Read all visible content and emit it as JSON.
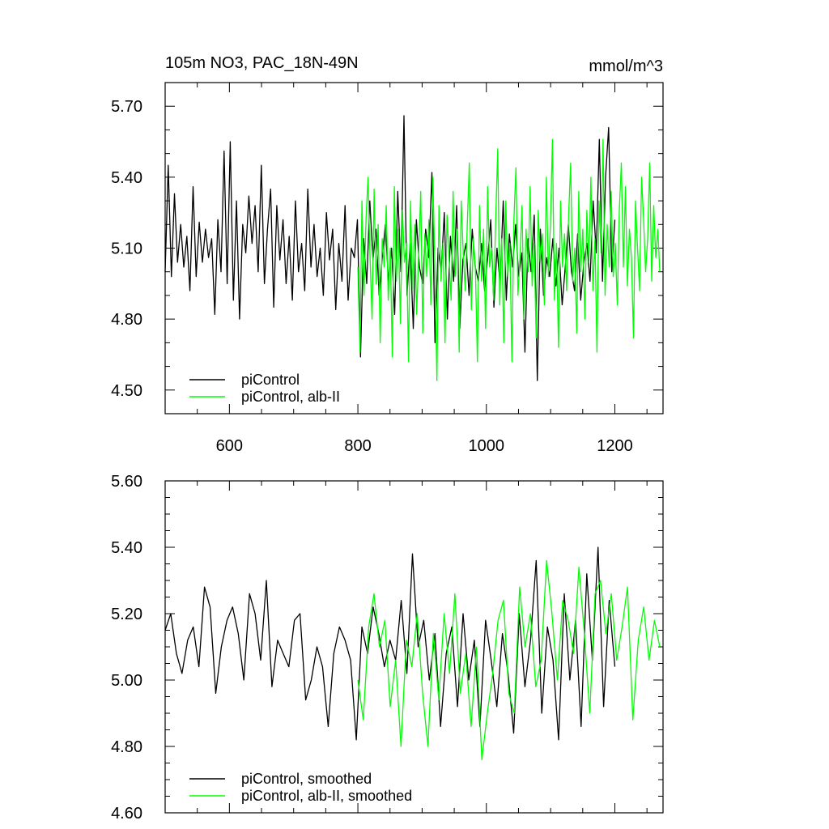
{
  "chart_data": [
    {
      "type": "line",
      "title": "105m NO3, PAC_18N-49N",
      "units": "mmol/m^3",
      "xlim": [
        500,
        1275
      ],
      "ylim": [
        4.4,
        5.8
      ],
      "xticks": [
        600,
        800,
        1000,
        1200
      ],
      "xtick_labels": [
        "600",
        "800",
        "1000",
        "1200"
      ],
      "yticks": [
        4.5,
        4.8,
        5.1,
        5.4,
        5.7
      ],
      "ytick_labels": [
        "4.50",
        "4.80",
        "5.10",
        "5.40",
        "5.70"
      ],
      "legend": [
        "piControl",
        "piControl, alb-II"
      ],
      "legend_position": "bottom-left",
      "grid": false,
      "series": [
        {
          "name": "piControl",
          "color": "#000000",
          "x_start": 500,
          "x_step": 1,
          "values": [
            5.0,
            5.45,
            4.98,
            5.33,
            5.04,
            5.2,
            5.02,
            5.15,
            4.92,
            5.36,
            4.98,
            5.21,
            5.04,
            5.18,
            5.06,
            5.14,
            4.82,
            5.22,
            5.0,
            5.51,
            4.95,
            5.55,
            4.88,
            5.3,
            4.8,
            5.2,
            5.08,
            5.32,
            5.12,
            5.28,
            5.0,
            5.45,
            4.95,
            5.18,
            5.35,
            4.85,
            5.28,
            5.05,
            5.22,
            4.95,
            5.15,
            4.88,
            5.3,
            5.0,
            5.12,
            4.92,
            5.35,
            5.02,
            5.2,
            4.98,
            5.1,
            4.9,
            5.25,
            5.05,
            5.18,
            4.84,
            5.12,
            4.96,
            5.28,
            4.88,
            5.1,
            5.06,
            5.22,
            4.64,
            5.14,
            4.95,
            5.3,
            5.05,
            5.18,
            4.9,
            5.06,
            5.2,
            4.96,
            5.1,
            4.82,
            5.34,
            5.0,
            5.66,
            4.9,
            5.12,
            4.76,
            5.22,
            5.02,
            4.95,
            5.18,
            5.06,
            5.42,
            4.7,
            5.1,
            5.0,
            5.25,
            4.8,
            5.15,
            4.96,
            5.28,
            4.76,
            5.05,
            5.12,
            4.9,
            5.18,
            5.02,
            4.96,
            5.12,
            4.92,
            5.06,
            5.22,
            4.85,
            5.1,
            4.95,
            5.3,
            4.88,
            5.16,
            5.02,
            5.2,
            4.98,
            5.08,
            4.66,
            5.14,
            5.0,
            5.24,
            4.54,
            5.18,
            4.9,
            5.06,
            4.98,
            5.14,
            4.94,
            5.1,
            4.86,
            5.02,
            5.2,
            5.0,
            4.92,
            5.16,
            4.88,
            5.04,
            5.12,
            4.96,
            5.3,
            5.08,
            5.56,
            4.96,
            5.4,
            5.61,
            5.0,
            5.22
          ]
        },
        {
          "name": "piControl, alb-II",
          "color": "#00ff00",
          "x_start": 800,
          "x_step": 1,
          "values": [
            5.02,
            4.66,
            5.3,
            4.9,
            5.22,
            5.4,
            5.06,
            4.8,
            5.35,
            4.95,
            5.2,
            4.7,
            5.14,
            5.02,
            5.28,
            4.88,
            5.1,
            4.64,
            5.36,
            4.96,
            5.18,
            4.78,
            5.26,
            5.04,
            5.12,
            4.62,
            5.3,
            4.92,
            5.2,
            4.82,
            5.08,
            5.34,
            4.74,
            5.16,
            4.98,
            5.22,
            4.86,
            5.4,
            5.02,
            4.54,
            5.28,
            4.96,
            5.12,
            4.7,
            5.24,
            5.06,
            4.88,
            5.34,
            4.98,
            5.18,
            4.66,
            5.3,
            5.08,
            4.92,
            5.2,
            5.46,
            4.84,
            5.14,
            5.02,
            4.62,
            5.28,
            4.96,
            5.18,
            4.76,
            5.36,
            5.02,
            5.1,
            4.88,
            5.22,
            5.52,
            4.86,
            5.14,
            4.7,
            5.3,
            4.98,
            5.12,
            4.62,
            5.22,
            5.44,
            4.9,
            5.06,
            5.28,
            4.8,
            5.18,
            5.0,
            5.36,
            4.94,
            5.12,
            4.72,
            5.26,
            5.04,
            5.16,
            4.86,
            5.4,
            4.98,
            5.2,
            5.56,
            4.88,
            5.12,
            4.68,
            5.3,
            5.02,
            5.16,
            4.92,
            5.24,
            5.46,
            4.96,
            5.1,
            4.74,
            5.34,
            5.0,
            5.18,
            4.8,
            5.26,
            5.04,
            5.4,
            4.92,
            5.14,
            4.66,
            5.3,
            5.08,
            5.56,
            4.9,
            5.2,
            5.02,
            5.34,
            4.98,
            5.12,
            4.86,
            5.26,
            5.46,
            5.02,
            5.36,
            4.94,
            5.18,
            5.06,
            4.72,
            5.3,
            5.1,
            4.92,
            5.4,
            5.22,
            5.0,
            5.14,
            5.46,
            4.96,
            5.28,
            5.06,
            5.18,
            5.0
          ]
        }
      ]
    },
    {
      "type": "line",
      "xlim": [
        500,
        1275
      ],
      "ylim": [
        4.6,
        5.6
      ],
      "xticks": [
        600,
        800,
        1000,
        1200
      ],
      "yticks": [
        4.6,
        4.8,
        5.0,
        5.2,
        5.4,
        5.6
      ],
      "ytick_labels": [
        "4.60",
        "4.80",
        "5.00",
        "5.20",
        "5.40",
        "5.60"
      ],
      "legend": [
        "piControl, smoothed",
        "piControl, alb-II, smoothed"
      ],
      "legend_position": "bottom-left",
      "grid": false,
      "series": [
        {
          "name": "piControl, smoothed",
          "color": "#000000",
          "x_start": 500,
          "x_step": 5,
          "values": [
            5.15,
            5.2,
            5.08,
            5.02,
            5.12,
            5.16,
            5.04,
            5.28,
            5.22,
            4.96,
            5.1,
            5.18,
            5.22,
            5.14,
            5.0,
            5.26,
            5.2,
            5.06,
            5.3,
            4.98,
            5.12,
            5.08,
            5.04,
            5.18,
            5.2,
            4.94,
            5.0,
            5.1,
            5.04,
            4.86,
            5.08,
            5.16,
            5.12,
            5.06,
            4.82,
            5.16,
            5.08,
            5.22,
            5.14,
            5.04,
            5.12,
            5.06,
            5.24,
            5.02,
            5.38,
            5.1,
            5.18,
            5.0,
            5.14,
            4.86,
            5.08,
            5.16,
            4.92,
            5.2,
            5.0,
            5.12,
            4.86,
            5.18,
            5.06,
            4.92,
            5.14,
            5.02,
            4.84,
            5.2,
            4.98,
            5.12,
            5.36,
            4.9,
            5.16,
            5.06,
            4.82,
            5.26,
            5.0,
            5.18,
            4.86,
            5.32,
            5.06,
            5.4,
            4.92,
            5.24,
            5.04
          ]
        },
        {
          "name": "piControl, alb-II, smoothed",
          "color": "#00ff00",
          "x_start": 800,
          "x_step": 5,
          "values": [
            5.0,
            4.88,
            5.16,
            5.26,
            5.1,
            5.18,
            4.92,
            5.06,
            4.8,
            5.12,
            5.04,
            5.2,
            4.96,
            4.8,
            5.14,
            4.94,
            5.2,
            5.02,
            5.26,
            4.96,
            5.08,
            4.86,
            5.1,
            4.76,
            4.9,
            5.02,
            5.18,
            5.24,
            4.96,
            4.9,
            5.28,
            5.1,
            5.2,
            4.98,
            5.06,
            5.36,
            5.2,
            5.0,
            5.24,
            5.18,
            5.08,
            5.34,
            5.14,
            4.9,
            5.26,
            5.3,
            5.14,
            5.26,
            5.06,
            5.16,
            5.28,
            4.88,
            5.12,
            5.22,
            5.06,
            5.18,
            5.1
          ]
        }
      ]
    }
  ]
}
